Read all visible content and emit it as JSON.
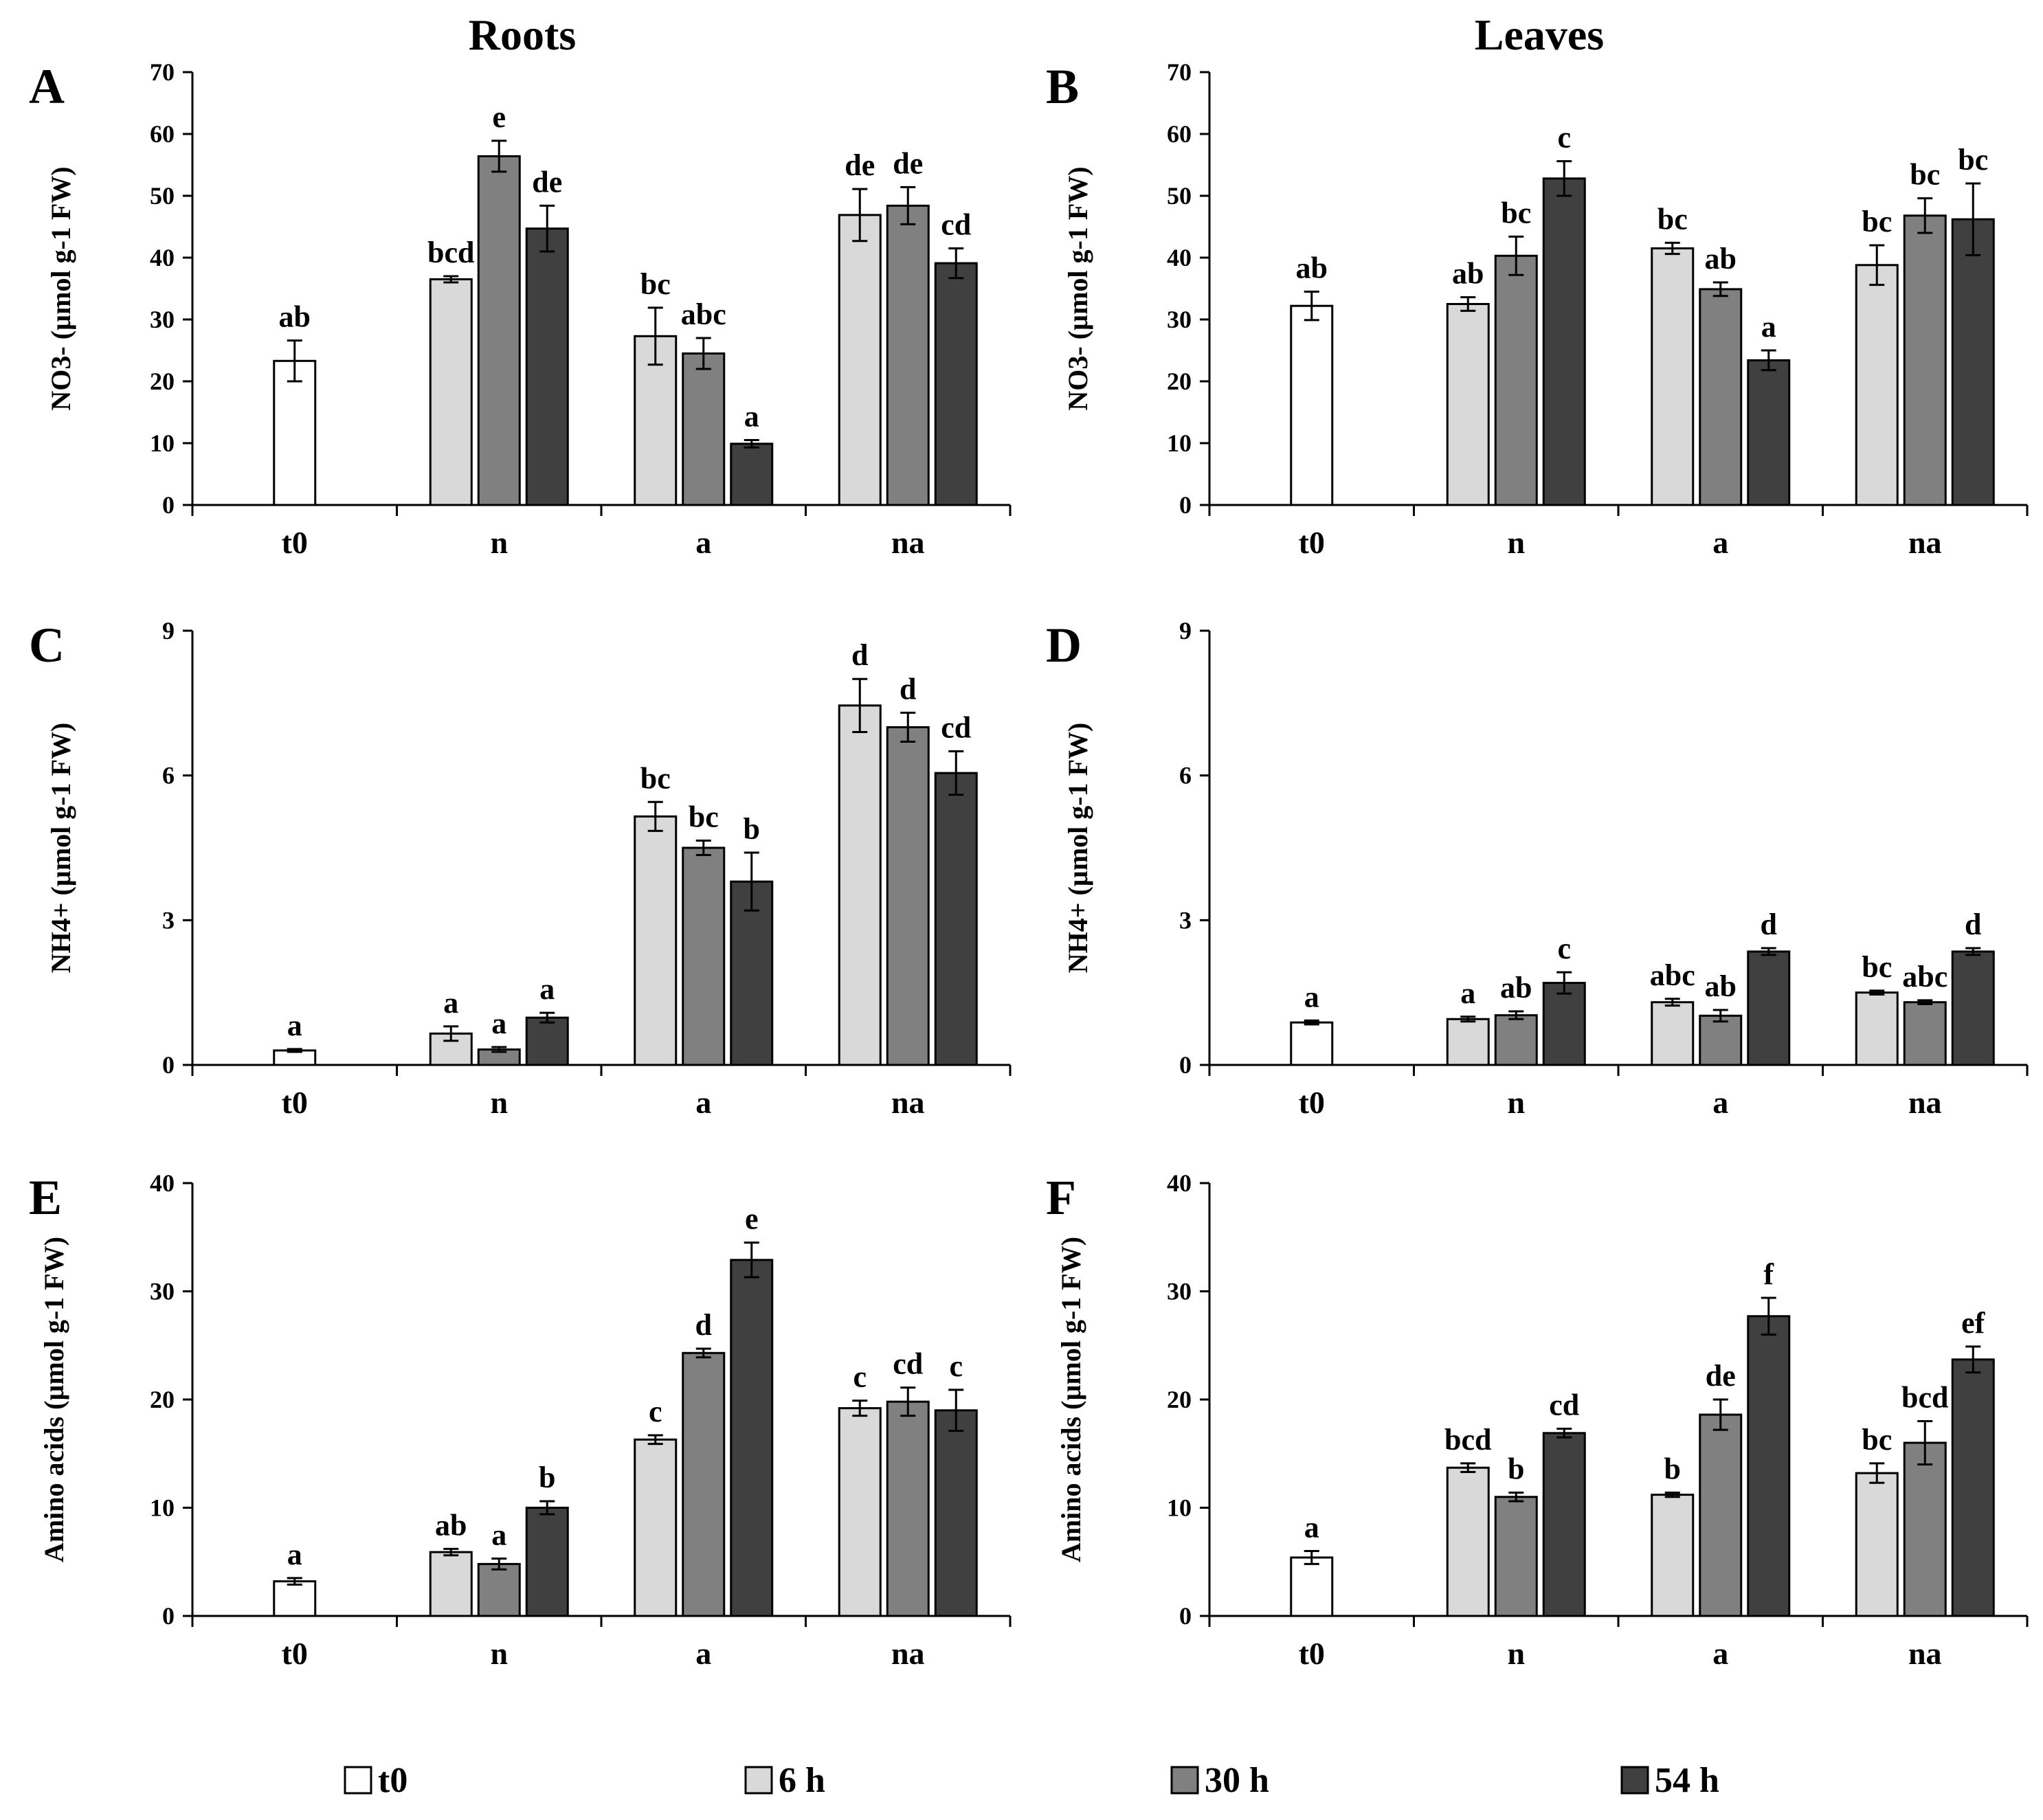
{
  "titles": {
    "roots": "Roots",
    "leaves": "Leaves"
  },
  "legend": [
    {
      "label": "t0",
      "color": "#ffffff"
    },
    {
      "label": "6 h",
      "color": "#d9d9d9"
    },
    {
      "label": "30 h",
      "color": "#808080"
    },
    {
      "label": "54 h",
      "color": "#404040"
    }
  ],
  "chart_data": [
    {
      "panel": "A",
      "type": "bar",
      "ylabel": "NO3- (µmol g-1 FW)",
      "ylim": [
        0,
        70
      ],
      "yticks": [
        0,
        10,
        20,
        30,
        40,
        50,
        60,
        70
      ],
      "categories": [
        "t0",
        "n",
        "a",
        "na"
      ],
      "series": [
        {
          "name": "t0",
          "values": [
            23.3,
            null,
            null,
            null
          ],
          "errors": [
            3.3,
            null,
            null,
            null
          ],
          "letters": [
            "ab",
            null,
            null,
            null
          ]
        },
        {
          "name": "6 h",
          "values": [
            null,
            36.5,
            27.3,
            46.9
          ],
          "errors": [
            null,
            0.5,
            4.6,
            4.2
          ],
          "letters": [
            null,
            "bcd",
            "bc",
            "de"
          ]
        },
        {
          "name": "30 h",
          "values": [
            null,
            56.4,
            24.5,
            48.4
          ],
          "errors": [
            null,
            2.5,
            2.5,
            3.0
          ],
          "letters": [
            null,
            "e",
            "abc",
            "de"
          ]
        },
        {
          "name": "54 h",
          "values": [
            null,
            44.7,
            9.9,
            39.1
          ],
          "errors": [
            null,
            3.7,
            0.6,
            2.4
          ],
          "letters": [
            null,
            "de",
            "a",
            "cd"
          ]
        }
      ]
    },
    {
      "panel": "B",
      "type": "bar",
      "ylabel": "NO3- (µmol g-1 FW)",
      "ylim": [
        0,
        70
      ],
      "yticks": [
        0,
        10,
        20,
        30,
        40,
        50,
        60,
        70
      ],
      "categories": [
        "t0",
        "n",
        "a",
        "na"
      ],
      "series": [
        {
          "name": "t0",
          "values": [
            32.2,
            null,
            null,
            null
          ],
          "errors": [
            2.3,
            null,
            null,
            null
          ],
          "letters": [
            "ab",
            null,
            null,
            null
          ]
        },
        {
          "name": "6 h",
          "values": [
            null,
            32.5,
            41.5,
            38.8
          ],
          "errors": [
            null,
            1.1,
            0.9,
            3.2
          ],
          "letters": [
            null,
            "ab",
            "bc",
            "bc"
          ]
        },
        {
          "name": "30 h",
          "values": [
            null,
            40.3,
            34.9,
            46.8
          ],
          "errors": [
            null,
            3.1,
            1.1,
            2.8
          ],
          "letters": [
            null,
            "bc",
            "ab",
            "bc"
          ]
        },
        {
          "name": "54 h",
          "values": [
            null,
            52.8,
            23.4,
            46.2
          ],
          "errors": [
            null,
            2.8,
            1.6,
            5.8
          ],
          "letters": [
            null,
            "c",
            "a",
            "bc"
          ]
        }
      ]
    },
    {
      "panel": "C",
      "type": "bar",
      "ylabel": "NH4+ (µmol g-1 FW)",
      "ylim": [
        0,
        9
      ],
      "yticks": [
        0,
        3,
        6,
        9
      ],
      "categories": [
        "t0",
        "n",
        "a",
        "na"
      ],
      "series": [
        {
          "name": "t0",
          "values": [
            0.3,
            null,
            null,
            null
          ],
          "errors": [
            0.03,
            null,
            null,
            null
          ],
          "letters": [
            "a",
            null,
            null,
            null
          ]
        },
        {
          "name": "6 h",
          "values": [
            null,
            0.65,
            5.15,
            7.45
          ],
          "errors": [
            null,
            0.15,
            0.3,
            0.55
          ],
          "letters": [
            null,
            "a",
            "bc",
            "d"
          ]
        },
        {
          "name": "30 h",
          "values": [
            null,
            0.32,
            4.5,
            7.0
          ],
          "errors": [
            null,
            0.05,
            0.15,
            0.3
          ],
          "letters": [
            null,
            "a",
            "bc",
            "d"
          ]
        },
        {
          "name": "54 h",
          "values": [
            null,
            0.98,
            3.8,
            6.05
          ],
          "errors": [
            null,
            0.1,
            0.6,
            0.45
          ],
          "letters": [
            null,
            "a",
            "b",
            "cd"
          ]
        }
      ]
    },
    {
      "panel": "D",
      "type": "bar",
      "ylabel": "NH4+ (µmol g-1 FW)",
      "ylim": [
        0,
        9
      ],
      "yticks": [
        0,
        3,
        6,
        9
      ],
      "categories": [
        "t0",
        "n",
        "a",
        "na"
      ],
      "series": [
        {
          "name": "t0",
          "values": [
            0.88,
            null,
            null,
            null
          ],
          "errors": [
            0.04,
            null,
            null,
            null
          ],
          "letters": [
            "a",
            null,
            null,
            null
          ]
        },
        {
          "name": "6 h",
          "values": [
            null,
            0.95,
            1.3,
            1.5
          ],
          "errors": [
            null,
            0.05,
            0.07,
            0.04
          ],
          "letters": [
            null,
            "a",
            "abc",
            "bc"
          ]
        },
        {
          "name": "30 h",
          "values": [
            null,
            1.03,
            1.02,
            1.3
          ],
          "errors": [
            null,
            0.08,
            0.12,
            0.04
          ],
          "letters": [
            null,
            "ab",
            "ab",
            "abc"
          ]
        },
        {
          "name": "54 h",
          "values": [
            null,
            1.7,
            2.35,
            2.35
          ],
          "errors": [
            null,
            0.22,
            0.07,
            0.07
          ],
          "letters": [
            null,
            "c",
            "d",
            "d"
          ]
        }
      ]
    },
    {
      "panel": "E",
      "type": "bar",
      "ylabel": "Amino acids (µmol g-1 FW)",
      "ylim": [
        0,
        40
      ],
      "yticks": [
        0,
        10,
        20,
        30,
        40
      ],
      "categories": [
        "t0",
        "n",
        "a",
        "na"
      ],
      "series": [
        {
          "name": "t0",
          "values": [
            3.2,
            null,
            null,
            null
          ],
          "errors": [
            0.3,
            null,
            null,
            null
          ],
          "letters": [
            "a",
            null,
            null,
            null
          ]
        },
        {
          "name": "6 h",
          "values": [
            null,
            5.9,
            16.3,
            19.2
          ],
          "errors": [
            null,
            0.3,
            0.4,
            0.7
          ],
          "letters": [
            null,
            "ab",
            "c",
            "c"
          ]
        },
        {
          "name": "30 h",
          "values": [
            null,
            4.8,
            24.3,
            19.8
          ],
          "errors": [
            null,
            0.5,
            0.4,
            1.3
          ],
          "letters": [
            null,
            "a",
            "d",
            "cd"
          ]
        },
        {
          "name": "54 h",
          "values": [
            null,
            10.0,
            32.9,
            19.0
          ],
          "errors": [
            null,
            0.6,
            1.6,
            1.9
          ],
          "letters": [
            null,
            "b",
            "e",
            "c"
          ]
        }
      ]
    },
    {
      "panel": "F",
      "type": "bar",
      "ylabel": "Amino acids (µmol g-1 FW)",
      "ylim": [
        0,
        40
      ],
      "yticks": [
        0,
        10,
        20,
        30,
        40
      ],
      "categories": [
        "t0",
        "n",
        "a",
        "na"
      ],
      "series": [
        {
          "name": "t0",
          "values": [
            5.4,
            null,
            null,
            null
          ],
          "errors": [
            0.6,
            null,
            null,
            null
          ],
          "letters": [
            "a",
            null,
            null,
            null
          ]
        },
        {
          "name": "6 h",
          "values": [
            null,
            13.7,
            11.2,
            13.2
          ],
          "errors": [
            null,
            0.4,
            0.2,
            0.9
          ],
          "letters": [
            null,
            "bcd",
            "b",
            "bc"
          ]
        },
        {
          "name": "30 h",
          "values": [
            null,
            11.0,
            18.6,
            16.0
          ],
          "errors": [
            null,
            0.4,
            1.4,
            2.0
          ],
          "letters": [
            null,
            "b",
            "de",
            "bcd"
          ]
        },
        {
          "name": "54 h",
          "values": [
            null,
            16.9,
            27.7,
            23.7
          ],
          "errors": [
            null,
            0.4,
            1.7,
            1.2
          ],
          "letters": [
            null,
            "cd",
            "f",
            "ef"
          ]
        }
      ]
    }
  ]
}
